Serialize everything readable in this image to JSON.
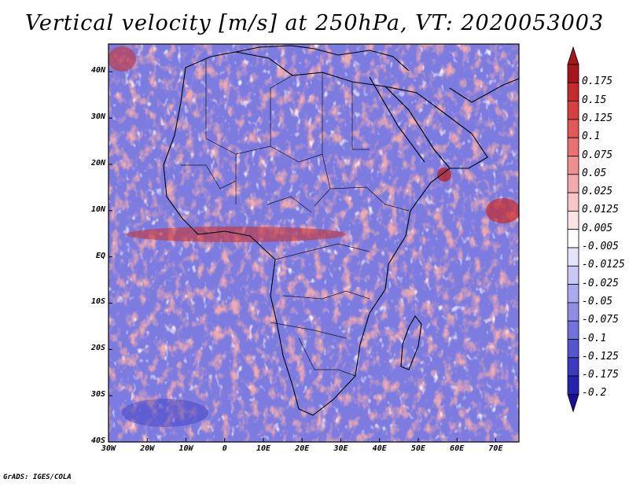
{
  "title": "Vertical velocity [m/s] at 250hPa, VT: 2020053003",
  "credit": "GrADS: IGES/COLA",
  "map": {
    "projection": "latlon",
    "lon_range": [
      -30,
      76
    ],
    "lat_range": [
      -40,
      46
    ],
    "lon_ticks": [
      {
        "value": -30,
        "label": "30W"
      },
      {
        "value": -20,
        "label": "20W"
      },
      {
        "value": -10,
        "label": "10W"
      },
      {
        "value": 0,
        "label": "0"
      },
      {
        "value": 10,
        "label": "10E"
      },
      {
        "value": 20,
        "label": "20E"
      },
      {
        "value": 30,
        "label": "30E"
      },
      {
        "value": 40,
        "label": "40E"
      },
      {
        "value": 50,
        "label": "50E"
      },
      {
        "value": 60,
        "label": "60E"
      },
      {
        "value": 70,
        "label": "70E"
      }
    ],
    "lat_ticks": [
      {
        "value": 40,
        "label": "40N"
      },
      {
        "value": 30,
        "label": "30N"
      },
      {
        "value": 20,
        "label": "20N"
      },
      {
        "value": 10,
        "label": "10N"
      },
      {
        "value": 0,
        "label": "EQ"
      },
      {
        "value": -10,
        "label": "10S"
      },
      {
        "value": -20,
        "label": "20S"
      },
      {
        "value": -30,
        "label": "30S"
      },
      {
        "value": -40,
        "label": "40S"
      }
    ],
    "coastline_color": "#000000",
    "field_colors": {
      "negative": "#5555dd",
      "positive": "#e27070",
      "neutral": "#ffffff"
    }
  },
  "colorbar": {
    "levels": [
      {
        "label": "0.175",
        "color": "#a8161b"
      },
      {
        "label": "0.15",
        "color": "#c62a2a"
      },
      {
        "label": "0.125",
        "color": "#d84040"
      },
      {
        "label": "0.1",
        "color": "#e25757"
      },
      {
        "label": "0.075",
        "color": "#ea7272"
      },
      {
        "label": "0.05",
        "color": "#f08f8f"
      },
      {
        "label": "0.025",
        "color": "#f5aaaa"
      },
      {
        "label": "0.0125",
        "color": "#f9c6c6"
      },
      {
        "label": "0.005",
        "color": "#fde3e3"
      },
      {
        "label": "-0.005",
        "color": "#ffffff"
      },
      {
        "label": "-0.0125",
        "color": "#e3e3fb"
      },
      {
        "label": "-0.025",
        "color": "#c8c8f5"
      },
      {
        "label": "-0.05",
        "color": "#aaaaee"
      },
      {
        "label": "-0.075",
        "color": "#8e8ee6"
      },
      {
        "label": "-0.1",
        "color": "#7272dd"
      },
      {
        "label": "-0.125",
        "color": "#5555d1"
      },
      {
        "label": "-0.175",
        "color": "#3b3bc2"
      },
      {
        "label": "-0.2",
        "color": "#2424b0"
      }
    ],
    "bottom_color": "#1a0f99"
  }
}
